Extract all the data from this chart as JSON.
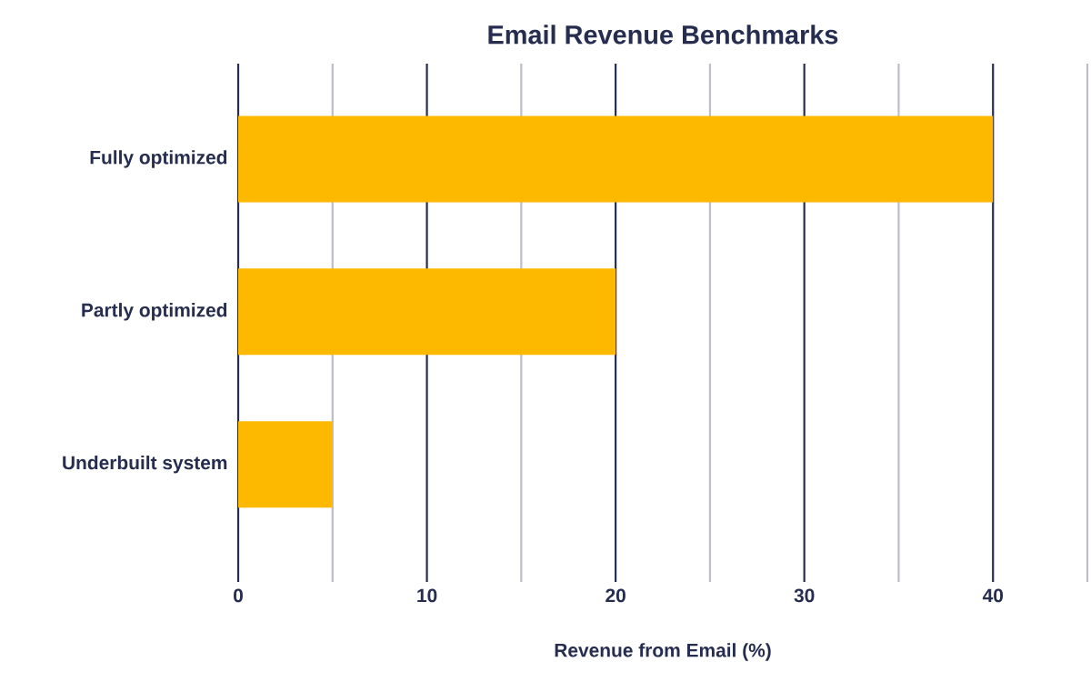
{
  "chart_data": {
    "type": "bar",
    "orientation": "horizontal",
    "title": "Email Revenue Benchmarks",
    "xlabel": "Revenue from Email (%)",
    "categories": [
      "Fully optimized",
      "Partly optimized",
      "Underbuilt system"
    ],
    "values": [
      40,
      20,
      5
    ],
    "color": "#fdb900",
    "xlim": [
      0,
      45
    ],
    "xticks": [
      0,
      {
        "value": 5,
        "label": null
      },
      10,
      {
        "value": 15,
        "label": null
      },
      20,
      {
        "value": 25,
        "label": null
      },
      30,
      {
        "value": 35,
        "label": null
      },
      40,
      {
        "value": 45,
        "label": null
      }
    ],
    "grid": "x"
  }
}
